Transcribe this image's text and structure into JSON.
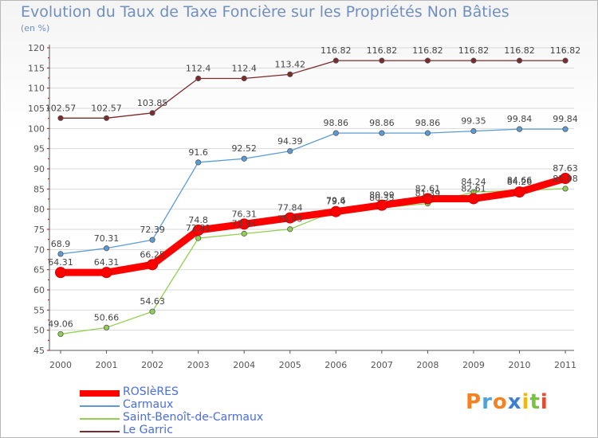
{
  "chart_data": {
    "type": "line",
    "title": "Evolution du Taux de Taxe Foncière sur les Propriétés Non Bâties",
    "unit_label": "(en %)",
    "x": [
      "2000",
      "2001",
      "2002",
      "2003",
      "2004",
      "2005",
      "2006",
      "2007",
      "2008",
      "2009",
      "2010",
      "2011"
    ],
    "ylim": [
      45,
      120
    ],
    "yticks": [
      "45",
      "50",
      "55",
      "60",
      "65",
      "70",
      "75",
      "80",
      "85",
      "90",
      "95",
      "100",
      "105",
      "110",
      "115",
      "120"
    ],
    "series": [
      {
        "name": "ROSIèRES",
        "color": "#ff0000",
        "values": [
          64.31,
          64.31,
          66.25,
          74.8,
          76.31,
          77.84,
          79.4,
          80.99,
          82.61,
          82.61,
          84.26,
          87.63
        ],
        "labels": [
          "64.31",
          "64.31",
          "66.25",
          "74.8",
          "76.31",
          "77.84",
          "79.4",
          "80.99",
          "82.61",
          "82.61",
          "84.26",
          "87.63"
        ]
      },
      {
        "name": "Carmaux",
        "color": "#5b9bd5",
        "values": [
          68.9,
          70.31,
          72.39,
          91.6,
          92.52,
          94.39,
          98.86,
          98.86,
          98.86,
          99.35,
          99.84,
          99.84
        ],
        "labels": [
          "68.9",
          "70.31",
          "72.39",
          "91.6",
          "92.52",
          "94.39",
          "98.86",
          "98.86",
          "98.86",
          "99.35",
          "99.84",
          "99.84"
        ]
      },
      {
        "name": "Saint-Benoît-de-Carmaux",
        "color": "#92d050",
        "values": [
          49.06,
          50.66,
          54.63,
          72.81,
          73.94,
          75.05,
          79.6,
          80.35,
          81.39,
          84.24,
          84.66,
          85.08
        ],
        "labels": [
          "49.06",
          "50.66",
          "54.63",
          "72.81",
          "73.94",
          "75.05",
          "79.6",
          "80.35",
          "81.39",
          "84.24",
          "84.66",
          "85.08"
        ]
      },
      {
        "name": "Le Garric",
        "color": "#7b2b2b",
        "values": [
          102.57,
          102.57,
          103.85,
          112.4,
          112.4,
          113.42,
          116.82,
          116.82,
          116.82,
          116.82,
          116.82,
          116.82
        ],
        "labels": [
          "102.57",
          "102.57",
          "103.85",
          "112.4",
          "112.4",
          "113.42",
          "116.82",
          "116.82",
          "116.82",
          "116.82",
          "116.82",
          "116.82"
        ]
      }
    ]
  },
  "legend": {
    "items": [
      {
        "label": "ROSIèRES",
        "color": "#ff0000"
      },
      {
        "label": "Carmaux",
        "color": "#5b9bd5"
      },
      {
        "label": "Saint-Benoît-de-Carmaux",
        "color": "#92d050"
      },
      {
        "label": "Le Garric",
        "color": "#7b2b2b"
      }
    ]
  },
  "logo": {
    "text": "Proxiti",
    "letters": [
      "P",
      "r",
      "o",
      "x",
      "i",
      "t",
      "i"
    ],
    "colors": [
      "#f58220",
      "#4fa3d8",
      "#f58220",
      "#3d7fd0",
      "#f5b800",
      "#7cc242",
      "#e64a2e"
    ]
  }
}
